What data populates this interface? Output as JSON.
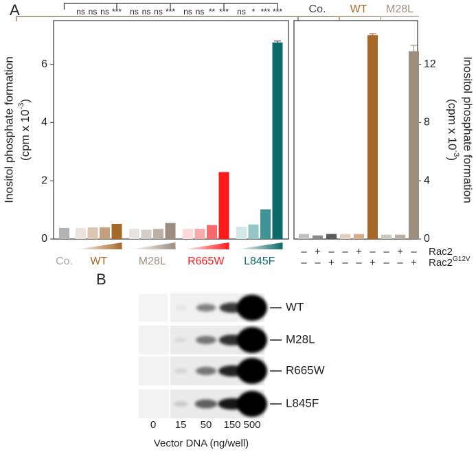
{
  "panels": {
    "a": "A",
    "b": "B"
  },
  "chart_data": [
    {
      "type": "bar",
      "ylabel": [
        "Inositol phosphate formation",
        "(cpm x 10",
        "-3",
        ")"
      ],
      "ylim": [
        0,
        7.5
      ],
      "yticks": [
        0,
        2,
        4,
        6
      ],
      "groups": [
        {
          "name": "Co.",
          "color": "#a9a9a9",
          "bar_colors": [
            "#b3b3b3"
          ],
          "values": [
            0.38
          ],
          "errors": [
            null
          ]
        },
        {
          "name": "WT",
          "color": "#a5692a",
          "bar_colors": [
            "#ece3da",
            "#dcc6b3",
            "#c6a07e",
            "#a5692a"
          ],
          "values": [
            0.38,
            0.4,
            0.4,
            0.52
          ],
          "errors": [
            null,
            null,
            null,
            null
          ]
        },
        {
          "name": "M28L",
          "color": "#9e8e80",
          "bar_colors": [
            "#e6e3e0",
            "#d4cdc7",
            "#bdb1a6",
            "#9e8e80"
          ],
          "values": [
            0.35,
            0.32,
            0.35,
            0.55
          ],
          "errors": [
            null,
            null,
            null,
            null
          ]
        },
        {
          "name": "R665W",
          "color": "#ff1a1a",
          "bar_colors": [
            "#fbd9d9",
            "#f8a9a9",
            "#f56a6a",
            "#ff1a1a"
          ],
          "values": [
            0.35,
            0.35,
            0.48,
            2.3
          ],
          "errors": [
            null,
            null,
            null,
            null
          ]
        },
        {
          "name": "L845F",
          "color": "#0e6a6a",
          "bar_colors": [
            "#d3e7e7",
            "#94c6c6",
            "#3d9494",
            "#0e6a6a"
          ],
          "values": [
            0.42,
            0.5,
            1.02,
            6.75
          ],
          "errors": [
            null,
            null,
            null,
            0.05
          ]
        }
      ],
      "significance": [
        "ns",
        "ns",
        "ns",
        "***",
        "ns",
        "ns",
        "ns",
        "***",
        "ns",
        "ns",
        "**",
        "***",
        "ns",
        "*",
        "***",
        "***"
      ]
    },
    {
      "type": "bar",
      "ylabel": [
        "Inositol phosphate formation",
        "(cpm x 10",
        "-3",
        ")"
      ],
      "y2lim": [
        0,
        15
      ],
      "y2ticks": [
        0,
        4,
        8,
        12
      ],
      "groups": [
        {
          "name": "Co.",
          "color": "#444444",
          "bar_colors": [
            "#c0c0c0",
            "#8a8a8a",
            "#5a5a5a"
          ],
          "values": [
            0.35,
            0.25,
            0.35
          ],
          "errors": [
            null,
            null,
            null
          ],
          "axis": "y2"
        },
        {
          "name": "WT",
          "color": "#a5692a",
          "bar_colors": [
            "#e3d0bc",
            "#d2b08c",
            "#a5692a"
          ],
          "values": [
            0.35,
            0.35,
            14.0
          ],
          "errors": [
            null,
            null,
            0.1
          ],
          "axis": "y2"
        },
        {
          "name": "M28L",
          "color": "#9e8e80",
          "bar_colors": [
            "#ccc6c0",
            "#b8aea5",
            "#9e8e80"
          ],
          "values": [
            0.3,
            0.3,
            12.9
          ],
          "errors": [
            null,
            null,
            0.4
          ],
          "axis": "y2"
        }
      ],
      "conditions": [
        {
          "name": "Rac2",
          "sup": null,
          "marks": [
            "–",
            "+",
            "–",
            "–",
            "+",
            "–",
            "–",
            "+",
            "–"
          ]
        },
        {
          "name": "Rac2",
          "sup": "G12V",
          "marks": [
            "–",
            "–",
            "+",
            "–",
            "–",
            "+",
            "–",
            "–",
            "+"
          ]
        }
      ]
    }
  ],
  "blot": {
    "rows": [
      "WT",
      "M28L",
      "R665W",
      "L845F"
    ],
    "lanes": [
      "0",
      "15",
      "50",
      "150",
      "500"
    ],
    "xlabel": "Vector DNA (ng/well)"
  }
}
